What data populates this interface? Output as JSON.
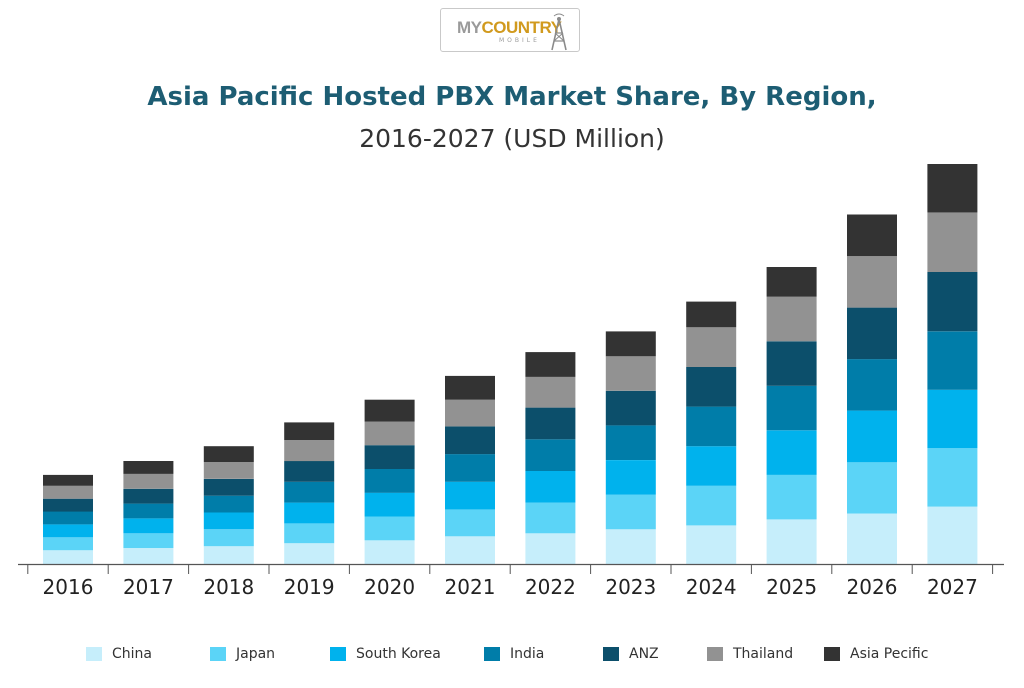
{
  "logo": {
    "prefix": "MY",
    "word": "COUNTRY",
    "sub": "MOBILE"
  },
  "chart_data": {
    "type": "bar",
    "stacked": true,
    "title": "Asia Pacific Hosted PBX Market Share, By Region,",
    "subtitle": "2016-2027 (USD Million)",
    "xlabel": "",
    "ylabel": "",
    "y_axis_shown": false,
    "grid": false,
    "legend_position": "bottom",
    "categories": [
      "2016",
      "2017",
      "2018",
      "2019",
      "2020",
      "2021",
      "2022",
      "2023",
      "2024",
      "2025",
      "2026",
      "2027"
    ],
    "series": [
      {
        "name": "China",
        "color": "#c6eefb",
        "values": [
          14,
          16,
          18,
          21,
          24,
          28,
          31,
          35,
          39,
          45,
          51,
          58
        ]
      },
      {
        "name": "Japan",
        "color": "#5bd4f7",
        "values": [
          13,
          15,
          17,
          20,
          24,
          27,
          31,
          35,
          40,
          45,
          52,
          59
        ]
      },
      {
        "name": "South Korea",
        "color": "#00b2ed",
        "values": [
          13,
          15,
          17,
          21,
          24,
          28,
          32,
          35,
          40,
          45,
          52,
          59
        ]
      },
      {
        "name": "India",
        "color": "#007da9",
        "values": [
          13,
          15,
          17,
          21,
          24,
          28,
          32,
          35,
          40,
          45,
          52,
          59
        ]
      },
      {
        "name": "ANZ",
        "color": "#0c4f6b",
        "values": [
          13,
          15,
          17,
          21,
          24,
          28,
          32,
          35,
          40,
          45,
          52,
          60
        ]
      },
      {
        "name": "Thailand",
        "color": "#929292",
        "values": [
          13,
          15,
          17,
          21,
          24,
          27,
          31,
          35,
          40,
          45,
          52,
          60
        ]
      },
      {
        "name": "Asia Pecific",
        "color": "#333333",
        "values": [
          11,
          13,
          16,
          18,
          22,
          24,
          25,
          25,
          26,
          30,
          42,
          49
        ]
      }
    ]
  }
}
